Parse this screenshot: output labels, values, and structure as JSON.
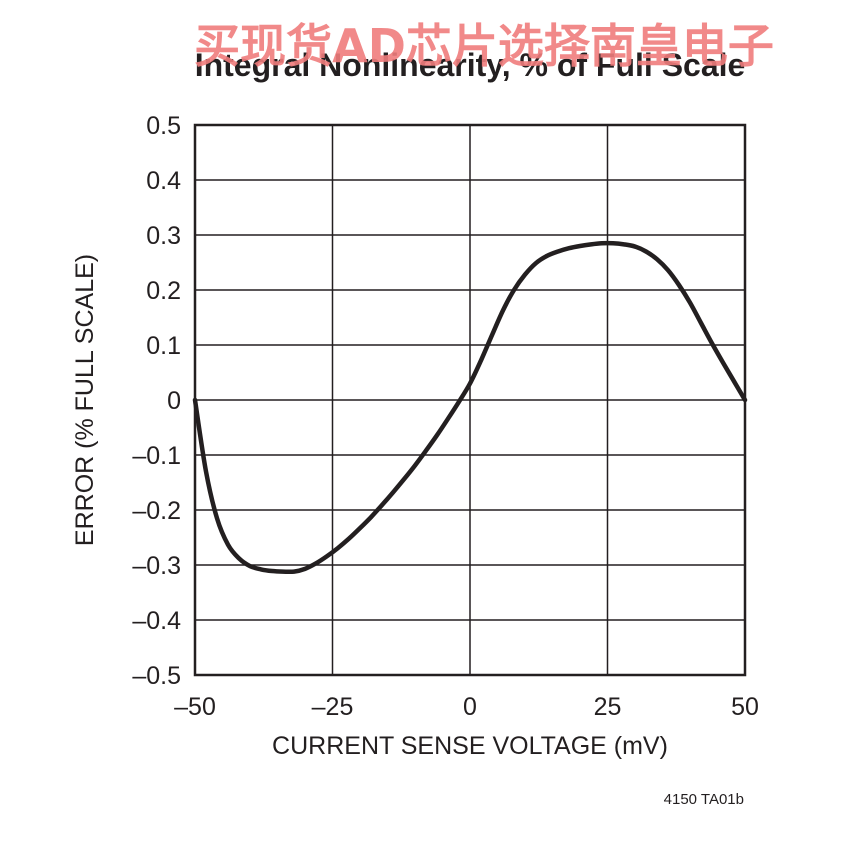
{
  "watermark": "买现货AD芯片选择南皇电子",
  "chart_data": {
    "type": "line",
    "title": "Integral Nonlinearity, % of Full Scale",
    "xlabel": "CURRENT SENSE VOLTAGE (mV)",
    "ylabel": "ERROR (% FULL SCALE)",
    "xlim": [
      -50,
      50
    ],
    "ylim": [
      -0.5,
      0.5
    ],
    "x_ticks": [
      -50,
      -25,
      0,
      25,
      50
    ],
    "x_tick_labels": [
      "–50",
      "–25",
      "0",
      "25",
      "50"
    ],
    "y_ticks": [
      0.5,
      0.4,
      0.3,
      0.2,
      0.1,
      0,
      -0.1,
      -0.2,
      -0.3,
      -0.4,
      -0.5
    ],
    "y_tick_labels": [
      "0.5",
      "0.4",
      "0.3",
      "0.2",
      "0.1",
      "0",
      "–0.1",
      "–0.2",
      "–0.3",
      "–0.4",
      "–0.5"
    ],
    "grid": true,
    "series": [
      {
        "color": "#231f20",
        "x": [
          -50,
          -48,
          -46,
          -44,
          -42,
          -40,
          -38,
          -36,
          -34,
          -32,
          -30,
          -28,
          -26,
          -24,
          -22,
          -20,
          -18,
          -16,
          -14,
          -12,
          -10,
          -8,
          -6,
          -4,
          -2,
          0,
          2,
          4,
          6,
          8,
          10,
          12,
          14,
          16,
          18,
          20,
          22,
          24,
          26,
          28,
          30,
          32,
          34,
          36,
          38,
          40,
          42,
          44,
          46,
          48,
          50
        ],
        "y": [
          0,
          -0.13,
          -0.215,
          -0.263,
          -0.288,
          -0.302,
          -0.308,
          -0.311,
          -0.312,
          -0.312,
          -0.307,
          -0.297,
          -0.284,
          -0.269,
          -0.252,
          -0.233,
          -0.213,
          -0.191,
          -0.168,
          -0.144,
          -0.119,
          -0.092,
          -0.064,
          -0.034,
          -0.003,
          0.03,
          0.072,
          0.118,
          0.163,
          0.2,
          0.228,
          0.249,
          0.262,
          0.27,
          0.276,
          0.28,
          0.283,
          0.285,
          0.285,
          0.283,
          0.279,
          0.27,
          0.256,
          0.236,
          0.209,
          0.177,
          0.14,
          0.103,
          0.068,
          0.034,
          0
        ]
      }
    ]
  },
  "figure_code": "4150 TA01b"
}
